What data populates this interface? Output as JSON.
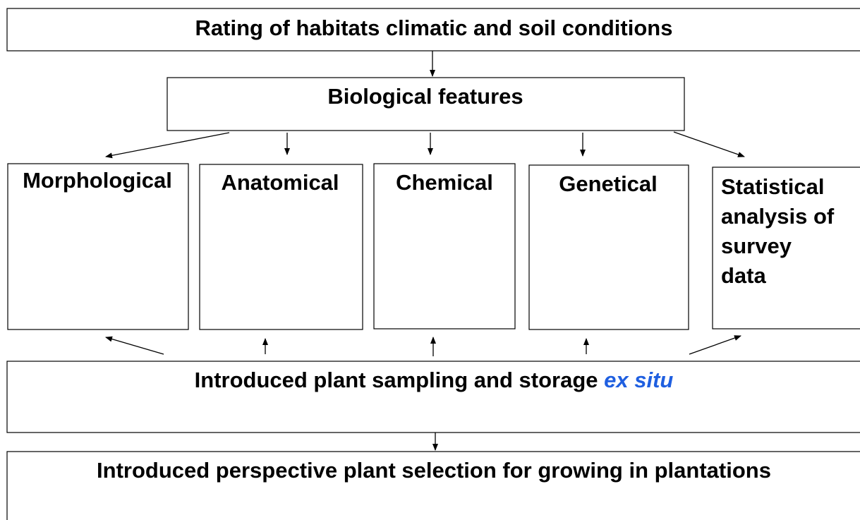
{
  "nodes": [
    {
      "label": "Rating of habitats climatic and soil conditions"
    },
    {
      "label": "Biological features"
    },
    {
      "label": "Morphological"
    },
    {
      "label": "Anatomical"
    },
    {
      "label": "Chemical"
    },
    {
      "label": "Genetical"
    },
    {
      "lines": [
        "Statistical",
        "analysis of",
        "survey",
        "data"
      ]
    },
    {
      "label": "Introduced plant sampling and storage",
      "emphasis": "ex situ"
    },
    {
      "label": "Introduced perspective plant selection for growing in plantations"
    }
  ]
}
